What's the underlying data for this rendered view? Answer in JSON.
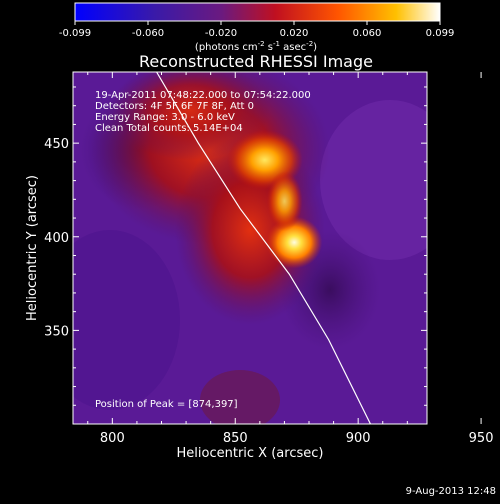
{
  "colorbar": {
    "ticks": [
      "-0.099",
      "-0.060",
      "-0.020",
      "0.020",
      "0.060",
      "0.099"
    ],
    "unit_prefix": "(photons cm",
    "unit_sup1": "-2",
    "unit_mid": " s",
    "unit_sup2": "-1",
    "unit_mid2": " asec",
    "unit_sup3": "-2",
    "unit_suffix": ")"
  },
  "chart_data": {
    "type": "heatmap",
    "title": "Reconstructed RHESSI Image",
    "xlabel": "Heliocentric X (arcsec)",
    "ylabel": "Heliocentric Y (arcsec)",
    "xlim": [
      784,
      928
    ],
    "ylim": [
      300,
      488
    ],
    "x_ticks": [
      800,
      850,
      900,
      950
    ],
    "y_ticks": [
      350,
      400,
      450
    ],
    "vlim": [
      -0.099,
      0.099
    ],
    "info_lines": [
      "19-Apr-2011 07:48:22.000 to 07:54:22.000",
      "Detectors: 4F 5F 6F 7F 8F, Att 0",
      "Energy Range: 3.0 - 6.0 keV",
      "Clean      Total counts: 5.14E+04"
    ],
    "peak_label": "Position of Peak = [874,397]",
    "peak": [
      874,
      397
    ],
    "sources": [
      {
        "x": 862,
        "y": 441,
        "value": 0.095
      },
      {
        "x": 874,
        "y": 397,
        "value": 0.099
      }
    ],
    "limb_curve": [
      [
        818,
        488
      ],
      [
        835,
        450
      ],
      [
        852,
        415
      ],
      [
        872,
        380
      ],
      [
        888,
        345
      ],
      [
        905,
        300
      ]
    ]
  },
  "footer": {
    "date": "9-Aug-2013 12:48"
  }
}
